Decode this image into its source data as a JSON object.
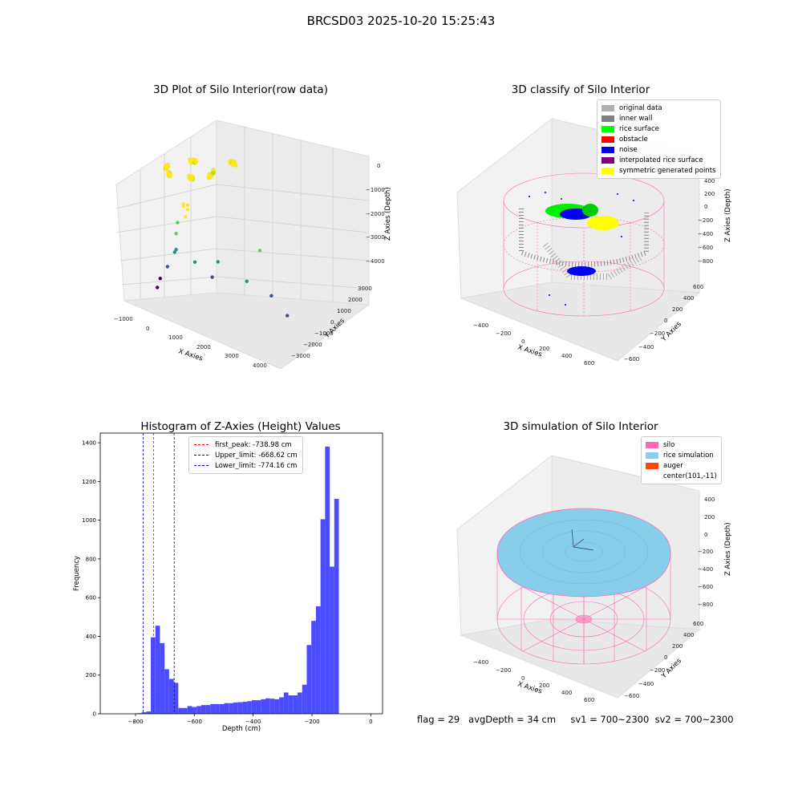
{
  "main_title": "BRCSD03 2025-10-20 15:25:43",
  "status": {
    "flag": "flag = 29",
    "avg_depth": "avgDepth = 34 cm",
    "sv1": "sv1 = 700~2300",
    "sv2": "sv2 = 700~2300"
  },
  "chart_data": [
    {
      "type": "scatter",
      "title": "3D Plot of Silo Interior(row data)",
      "xlabel": "X Axies",
      "ylabel": "Y Axies",
      "zlabel": "Z Axies (Depth)",
      "x_ticks": [
        "−1000",
        "0",
        "1000",
        "2000",
        "3000",
        "4000"
      ],
      "y_ticks": [
        "−3000",
        "−2000",
        "−1000",
        "0",
        "1000",
        "2000",
        "3000"
      ],
      "z_ticks": [
        "−4000",
        "−3000",
        "−2000",
        "−1000",
        "0"
      ],
      "colormap": "viridis",
      "points_xyz": [
        [
          100,
          0,
          -100
        ],
        [
          200,
          100,
          -150
        ],
        [
          300,
          -100,
          -200
        ],
        [
          0,
          200,
          -300
        ],
        [
          150,
          50,
          -600
        ],
        [
          -100,
          0,
          -900
        ],
        [
          -200,
          100,
          -1400
        ],
        [
          0,
          -300,
          -1800
        ],
        [
          -300,
          200,
          -2200
        ],
        [
          -500,
          100,
          -2800
        ],
        [
          -700,
          0,
          -3300
        ],
        [
          -900,
          200,
          -3800
        ],
        [
          1300,
          0,
          -1900
        ],
        [
          2200,
          200,
          -2400
        ],
        [
          3000,
          300,
          -2700
        ],
        [
          3700,
          0,
          -3100
        ],
        [
          2500,
          500,
          -1200
        ],
        [
          900,
          400,
          -2800
        ],
        [
          600,
          -200,
          -2100
        ]
      ]
    },
    {
      "type": "scatter",
      "title": "3D classify of Silo Interior",
      "xlabel": "X Axies",
      "ylabel": "Y Axies",
      "zlabel": "Z Axies (Depth)",
      "x_ticks": [
        "−400",
        "−200",
        "0",
        "200",
        "400",
        "600"
      ],
      "y_ticks": [
        "−600",
        "−400",
        "−200",
        "0",
        "200",
        "400",
        "600"
      ],
      "z_ticks": [
        "−800",
        "−600",
        "−400",
        "−200",
        "0",
        "200",
        "400"
      ],
      "legend_position": "top-right",
      "legend": [
        {
          "label": "original data",
          "color": "#b0b0b0"
        },
        {
          "label": "inner wall",
          "color": "#808080"
        },
        {
          "label": "rice surface",
          "color": "#00ff00"
        },
        {
          "label": "obstacle",
          "color": "#ff0000"
        },
        {
          "label": "noise",
          "color": "#0000ee"
        },
        {
          "label": "interpolated rice surface",
          "color": "#800080"
        },
        {
          "label": "symmetric generated points",
          "color": "#ffff00"
        }
      ]
    },
    {
      "type": "bar",
      "title": "Histogram of Z-Axies (Height) Values",
      "xlabel": "Depth (cm)",
      "ylabel": "Frequency",
      "bar_color": "#4c4cff",
      "xlim": [
        -920,
        40
      ],
      "ylim": [
        0,
        1450
      ],
      "x_ticks": [
        -800,
        -600,
        -400,
        -200,
        0
      ],
      "y_ticks": [
        0,
        200,
        400,
        600,
        800,
        1000,
        1200,
        1400
      ],
      "bin_width": 15.6,
      "bin_start": -795,
      "values": [
        3,
        8,
        12,
        395,
        455,
        365,
        230,
        180,
        160,
        30,
        30,
        40,
        35,
        40,
        45,
        45,
        50,
        50,
        50,
        55,
        55,
        58,
        60,
        62,
        65,
        70,
        70,
        75,
        80,
        78,
        75,
        85,
        110,
        95,
        95,
        110,
        150,
        355,
        480,
        555,
        1005,
        1380,
        760,
        1110
      ],
      "lines": [
        {
          "label": "first_peak: -738.98 cm",
          "x": -738.98,
          "color": "#ff0000"
        },
        {
          "label": "Upper_limit: -668.62 cm",
          "x": -668.62,
          "color": "#0000cc"
        },
        {
          "label": "Lower_limit: -774.16 cm",
          "x": -774.16,
          "color": "#0000cc"
        }
      ]
    },
    {
      "type": "scatter",
      "title": "3D simulation of Silo Interior",
      "xlabel": "X Axies",
      "ylabel": "Y Axies",
      "zlabel": "Z Axies (Depth)",
      "x_ticks": [
        "−400",
        "−200",
        "0",
        "200",
        "400",
        "600"
      ],
      "y_ticks": [
        "−600",
        "−400",
        "−200",
        "0",
        "200",
        "400",
        "600"
      ],
      "z_ticks": [
        "−800",
        "−600",
        "−400",
        "−200",
        "0",
        "200",
        "400"
      ],
      "legend_position": "top-right",
      "legend": [
        {
          "label": "silo",
          "color": "#ff69b4"
        },
        {
          "label": "rice simulation",
          "color": "#87ceeb"
        },
        {
          "label": "auger",
          "color": "#ff4500"
        },
        {
          "label": "center(101,-11)",
          "color": ""
        }
      ]
    }
  ]
}
